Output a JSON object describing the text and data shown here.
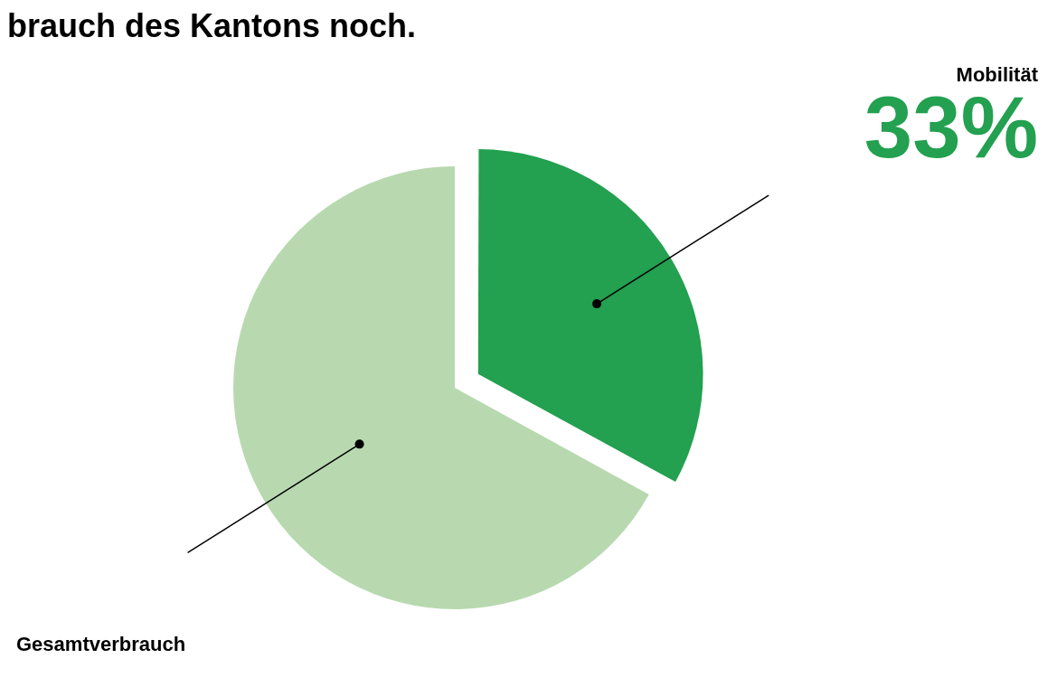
{
  "chart_data": {
    "type": "pie",
    "title": "brauch des Kantons noch.",
    "categories": [
      "Mobilität",
      "Gesamtverbrauch"
    ],
    "values": [
      33,
      67
    ],
    "colors": [
      "#23a050",
      "#b8d9b0"
    ],
    "value_labels": [
      "33%",
      null
    ],
    "legend": false
  }
}
